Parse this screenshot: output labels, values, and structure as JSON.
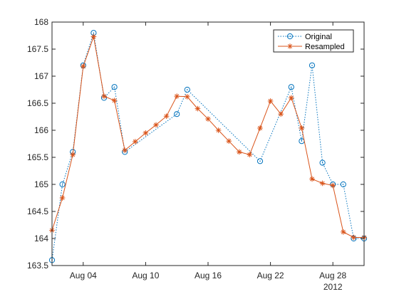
{
  "chart_data": {
    "type": "line",
    "xlabel": "",
    "ylabel": "",
    "year_label": "2012",
    "xlim": [
      "2012-08-01",
      "2012-08-31"
    ],
    "ylim": [
      163.5,
      168
    ],
    "x_ticks": [
      "2012-08-04",
      "2012-08-10",
      "2012-08-16",
      "2012-08-22",
      "2012-08-28"
    ],
    "x_tick_labels": [
      "Aug 04",
      "Aug 10",
      "Aug 16",
      "Aug 22",
      "Aug 28"
    ],
    "y_ticks": [
      163.5,
      164,
      164.5,
      165,
      165.5,
      166,
      166.5,
      167,
      167.5,
      168
    ],
    "y_tick_labels": [
      "163.5",
      "164",
      "164.5",
      "165",
      "165.5",
      "166",
      "166.5",
      "167",
      "167.5",
      "168"
    ],
    "grid": false,
    "legend_position": "top-right",
    "series": [
      {
        "name": "Original",
        "color": "#0072BD",
        "line_style": "dotted",
        "marker": "circle",
        "x": [
          "2012-08-01",
          "2012-08-02",
          "2012-08-03",
          "2012-08-04",
          "2012-08-05",
          "2012-08-06",
          "2012-08-07",
          "2012-08-08",
          "2012-08-13",
          "2012-08-14",
          "2012-08-21",
          "2012-08-24",
          "2012-08-25",
          "2012-08-26",
          "2012-08-27",
          "2012-08-28",
          "2012-08-29",
          "2012-08-30",
          "2012-08-31"
        ],
        "y": [
          163.6,
          165.0,
          165.6,
          167.2,
          167.8,
          166.6,
          166.8,
          165.6,
          166.3,
          166.75,
          165.43,
          166.8,
          165.8,
          167.2,
          165.4,
          165.0,
          165.0,
          164.0,
          164.0
        ]
      },
      {
        "name": "Resampled",
        "color": "#D95319",
        "line_style": "solid",
        "marker": "asterisk",
        "x": [
          "2012-08-01",
          "2012-08-02",
          "2012-08-03",
          "2012-08-04",
          "2012-08-05",
          "2012-08-06",
          "2012-08-07",
          "2012-08-08",
          "2012-08-09",
          "2012-08-10",
          "2012-08-11",
          "2012-08-12",
          "2012-08-13",
          "2012-08-14",
          "2012-08-15",
          "2012-08-16",
          "2012-08-17",
          "2012-08-18",
          "2012-08-19",
          "2012-08-20",
          "2012-08-21",
          "2012-08-22",
          "2012-08-23",
          "2012-08-24",
          "2012-08-25",
          "2012-08-26",
          "2012-08-27",
          "2012-08-28",
          "2012-08-29",
          "2012-08-30",
          "2012-08-31"
        ],
        "y": [
          164.15,
          164.75,
          165.55,
          167.18,
          167.73,
          166.63,
          166.55,
          165.63,
          165.79,
          165.95,
          166.1,
          166.26,
          166.63,
          166.62,
          166.4,
          166.21,
          166.0,
          165.8,
          165.6,
          165.55,
          166.04,
          166.54,
          166.3,
          166.6,
          166.04,
          165.1,
          165.02,
          164.98,
          164.12,
          164.02,
          164.02
        ]
      }
    ]
  }
}
